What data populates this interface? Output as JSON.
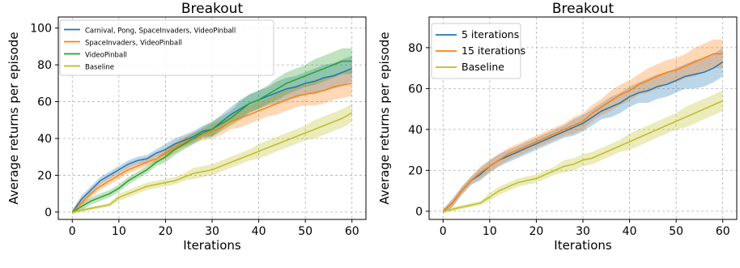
{
  "chart_data": [
    {
      "type": "line",
      "title": "Breakout",
      "xlabel": "Iterations",
      "ylabel": "Average returns per episode",
      "xlim": [
        -3,
        63
      ],
      "ylim": [
        -4,
        106
      ],
      "xticks": [
        0,
        10,
        20,
        30,
        40,
        50,
        60
      ],
      "yticks": [
        0,
        20,
        40,
        60,
        80,
        100
      ],
      "grid": true,
      "legend_position": "top-left",
      "x": [
        0,
        2,
        4,
        6,
        8,
        10,
        12,
        14,
        16,
        18,
        20,
        22,
        24,
        26,
        28,
        30,
        32,
        34,
        36,
        38,
        40,
        42,
        44,
        46,
        48,
        50,
        52,
        54,
        56,
        58,
        60
      ],
      "series": [
        {
          "name": "Carnival, Pong, SpaceInvaders, VideoPinball",
          "color": "#1f77b4",
          "values": [
            0,
            7,
            12,
            17,
            20,
            23,
            26,
            28,
            29,
            32,
            34,
            37,
            39,
            41,
            44,
            45,
            49,
            53,
            56,
            59,
            61,
            63,
            65,
            67,
            68,
            70,
            71,
            73,
            74,
            76,
            78
          ],
          "band": [
            1,
            2,
            2,
            2,
            2,
            2,
            2,
            2,
            2,
            2,
            3,
            3,
            3,
            3,
            3,
            4,
            4,
            4,
            5,
            5,
            5,
            5,
            6,
            6,
            6,
            6,
            7,
            7,
            7,
            7,
            7
          ]
        },
        {
          "name": "SpaceInvaders, VideoPinball",
          "color": "#ff7f0e",
          "values": [
            0,
            5,
            10,
            14,
            17,
            20,
            23,
            25,
            27,
            29,
            32,
            35,
            38,
            40,
            42,
            44,
            46,
            49,
            51,
            53,
            55,
            57,
            59,
            61,
            63,
            64,
            65,
            66,
            68,
            69,
            70
          ],
          "band": [
            1,
            2,
            2,
            2,
            2,
            2,
            2,
            2,
            2,
            2,
            3,
            3,
            3,
            3,
            3,
            4,
            4,
            4,
            5,
            5,
            5,
            5,
            6,
            6,
            6,
            6,
            7,
            7,
            7,
            7,
            7
          ]
        },
        {
          "name": "VideoPinball",
          "color": "#2ca02c",
          "values": [
            0,
            3,
            6,
            8,
            10,
            13,
            17,
            20,
            23,
            27,
            30,
            34,
            37,
            40,
            43,
            45,
            48,
            51,
            55,
            59,
            61,
            64,
            67,
            70,
            72,
            74,
            76,
            78,
            80,
            82,
            82
          ],
          "band": [
            1,
            2,
            2,
            2,
            2,
            2,
            2,
            2,
            2,
            2,
            3,
            3,
            3,
            3,
            3,
            4,
            4,
            4,
            5,
            5,
            5,
            5,
            6,
            6,
            6,
            6,
            7,
            7,
            7,
            7,
            7
          ]
        },
        {
          "name": "Baseline",
          "color": "#bcbd22",
          "values": [
            0,
            1,
            2,
            3,
            4,
            8,
            10,
            12,
            14,
            15,
            16,
            17,
            19,
            21,
            22,
            23,
            25,
            27,
            29,
            31,
            33,
            35,
            37,
            39,
            41,
            43,
            45,
            47,
            49,
            51,
            54
          ],
          "band": [
            1,
            1,
            1,
            1,
            1,
            2,
            2,
            2,
            2,
            2,
            2,
            2,
            2,
            3,
            3,
            3,
            3,
            3,
            3,
            3,
            4,
            4,
            4,
            4,
            4,
            4,
            5,
            5,
            5,
            5,
            5
          ]
        }
      ]
    },
    {
      "type": "line",
      "title": "Breakout",
      "xlabel": "Iterations",
      "ylabel": "Average returns per episode",
      "xlim": [
        -3,
        63
      ],
      "ylim": [
        -4,
        95
      ],
      "xticks": [
        0,
        10,
        20,
        30,
        40,
        50,
        60
      ],
      "yticks": [
        0,
        20,
        40,
        60,
        80
      ],
      "grid": true,
      "legend_position": "top-left",
      "x": [
        0,
        2,
        4,
        6,
        8,
        10,
        12,
        14,
        16,
        18,
        20,
        22,
        24,
        26,
        28,
        30,
        32,
        34,
        36,
        38,
        40,
        42,
        44,
        46,
        48,
        50,
        52,
        54,
        56,
        58,
        60
      ],
      "series": [
        {
          "name": "5 iterations",
          "color": "#1f77b4",
          "values": [
            0,
            4,
            10,
            15,
            18,
            22,
            25,
            27,
            29,
            31,
            33,
            35,
            37,
            39,
            41,
            43,
            46,
            49,
            51,
            53,
            56,
            58,
            59,
            61,
            62,
            64,
            66,
            67,
            68,
            70,
            73
          ],
          "band": [
            1,
            2,
            2,
            2,
            3,
            3,
            3,
            3,
            3,
            3,
            3,
            3,
            3,
            3,
            4,
            4,
            4,
            4,
            5,
            5,
            5,
            5,
            6,
            6,
            6,
            6,
            6,
            7,
            7,
            7,
            7
          ]
        },
        {
          "name": "15 iterations",
          "color": "#ff7f0e",
          "values": [
            0,
            4,
            10,
            15,
            19,
            22,
            25,
            28,
            30,
            32,
            34,
            36,
            38,
            40,
            42,
            44,
            48,
            51,
            54,
            57,
            59,
            62,
            64,
            66,
            68,
            69,
            71,
            73,
            75,
            77,
            77
          ],
          "band": [
            1,
            2,
            2,
            2,
            3,
            3,
            3,
            3,
            3,
            3,
            3,
            3,
            3,
            3,
            4,
            4,
            4,
            4,
            5,
            5,
            5,
            5,
            6,
            6,
            6,
            6,
            6,
            7,
            7,
            7,
            7
          ]
        },
        {
          "name": "Baseline",
          "color": "#bcbd22",
          "values": [
            0,
            1,
            2,
            3,
            4,
            7,
            10,
            12,
            14,
            15,
            16,
            18,
            20,
            22,
            23,
            25,
            26,
            28,
            30,
            32,
            34,
            36,
            38,
            40,
            42,
            44,
            46,
            48,
            50,
            52,
            54
          ],
          "band": [
            1,
            1,
            1,
            1,
            1,
            2,
            2,
            2,
            2,
            2,
            2,
            2,
            2,
            3,
            3,
            3,
            3,
            3,
            3,
            3,
            4,
            4,
            4,
            4,
            4,
            4,
            5,
            5,
            5,
            5,
            5
          ]
        }
      ]
    }
  ]
}
